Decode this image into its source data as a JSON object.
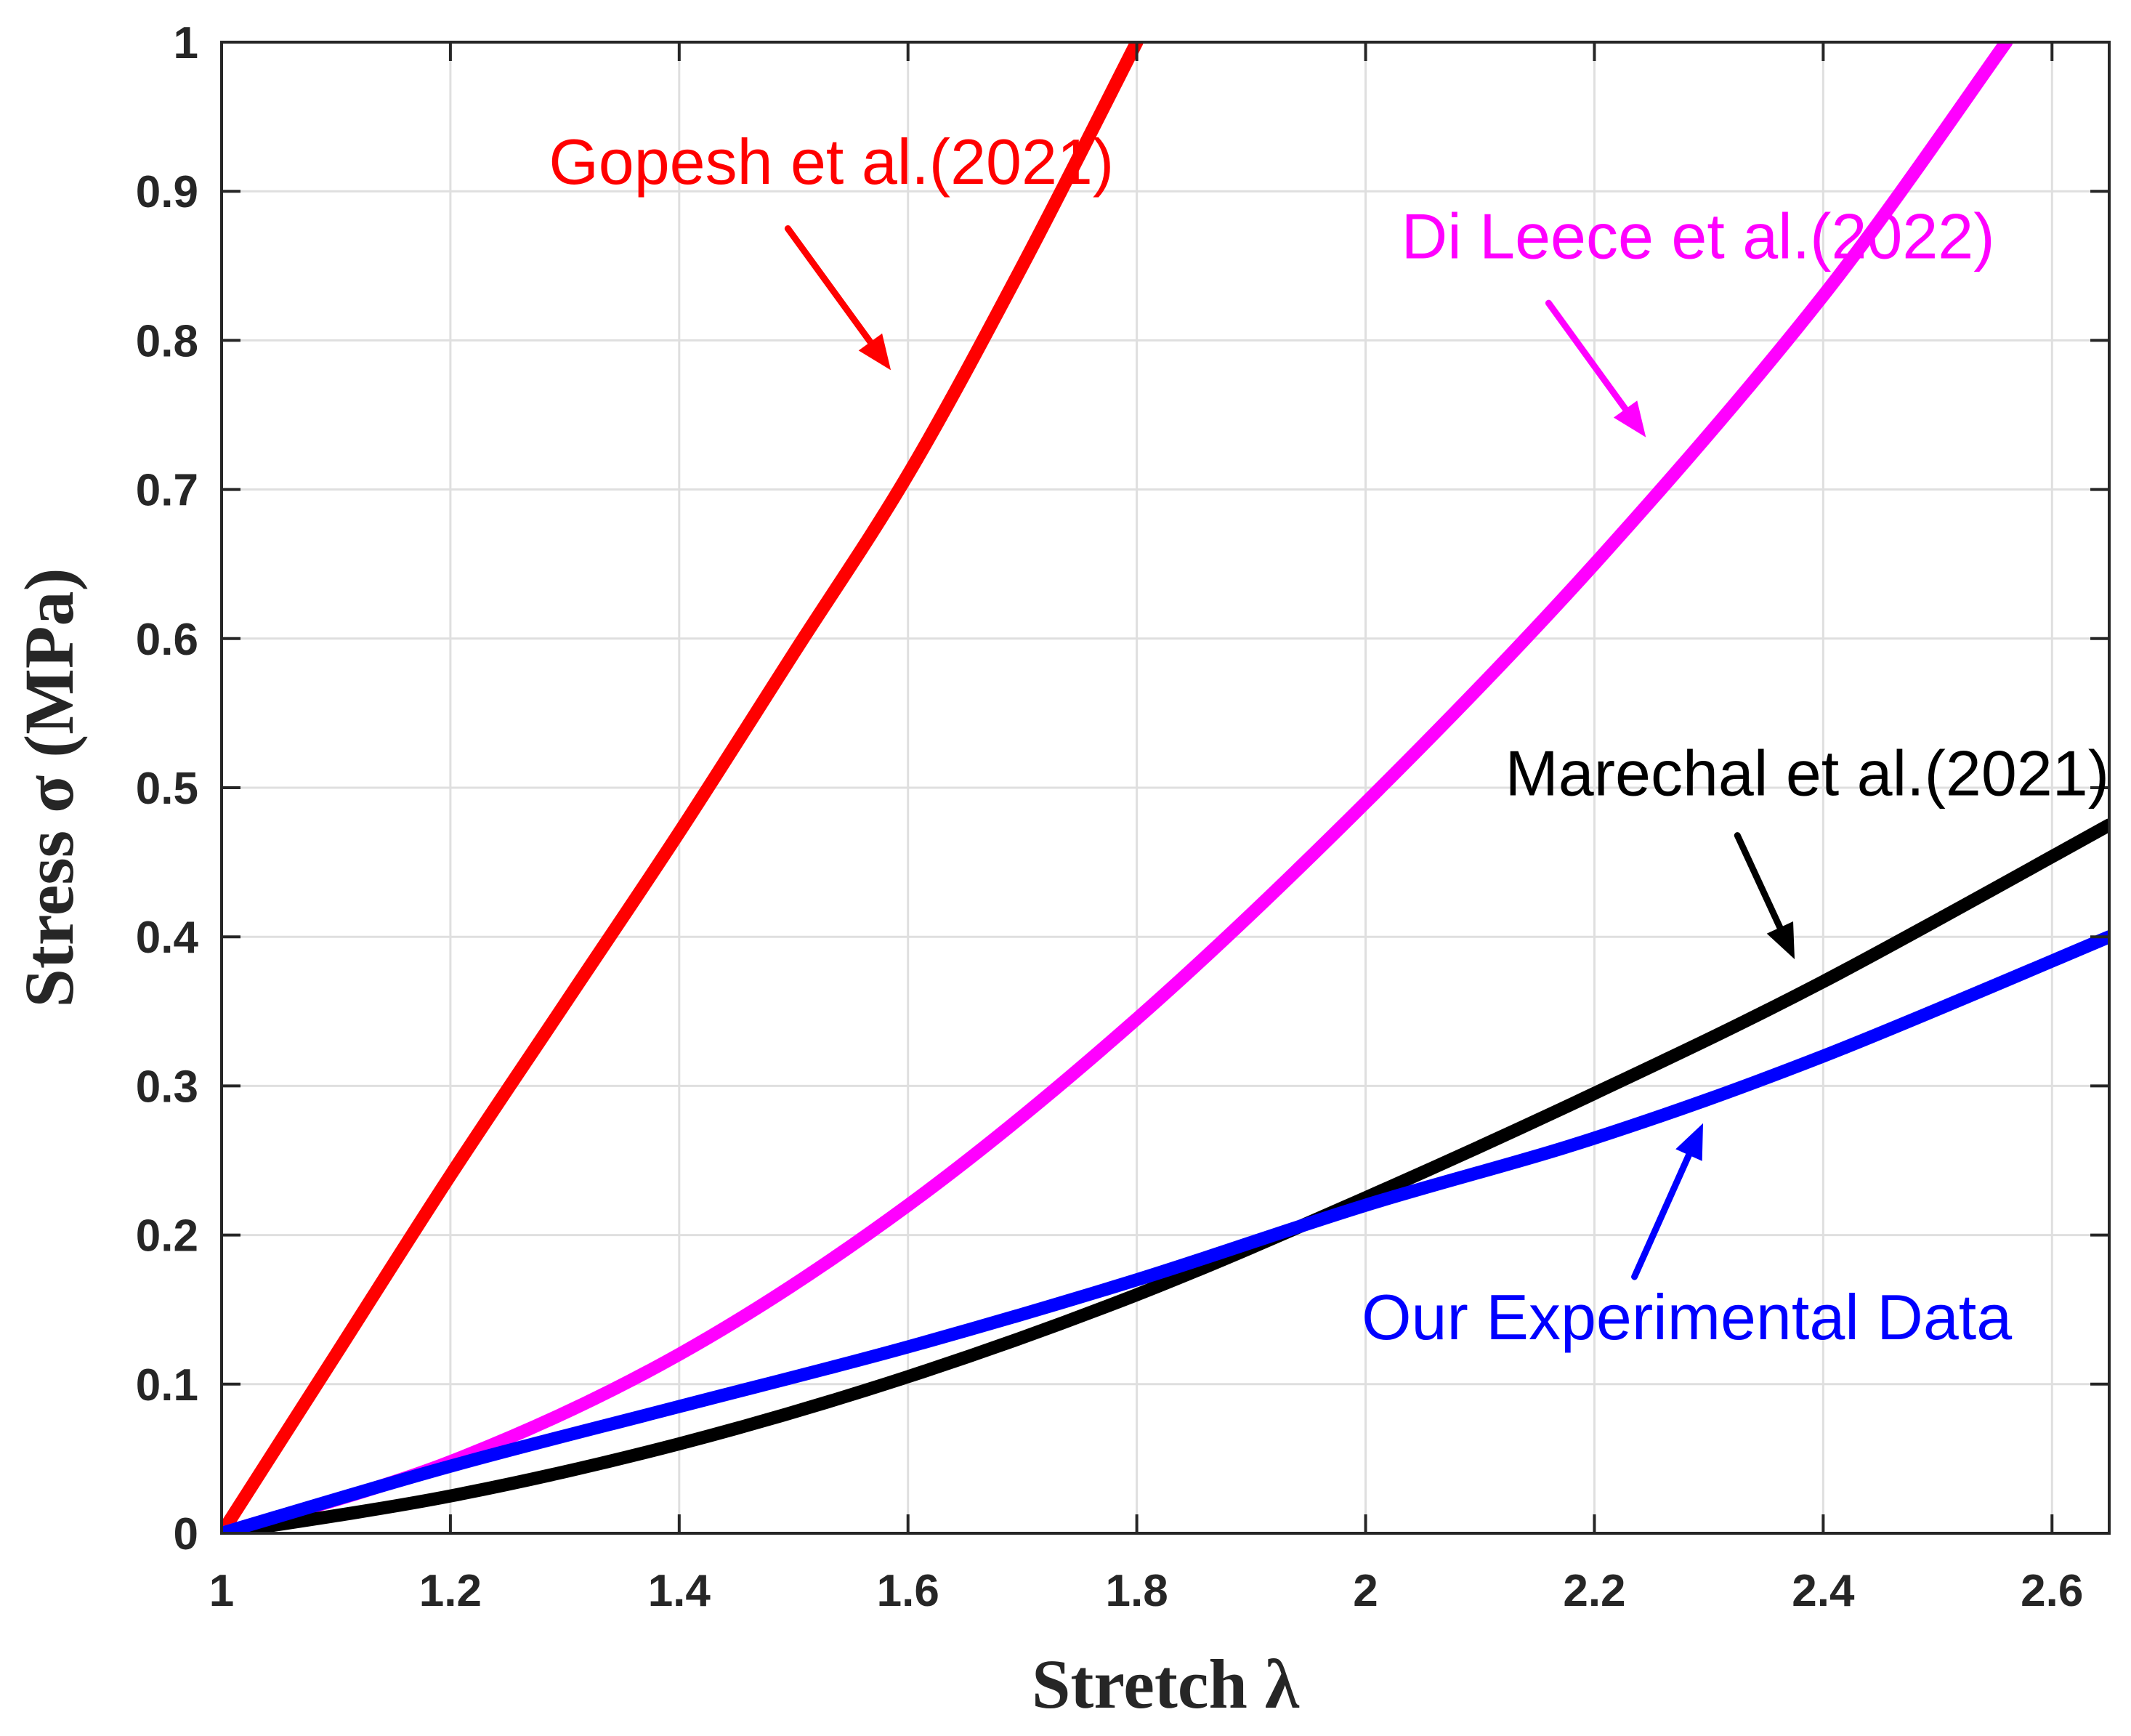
{
  "chart_data": {
    "type": "line",
    "title": "",
    "xlabel": "Stretch λ",
    "ylabel": "Stress σ (MPa)",
    "xlim": [
      1,
      2.65
    ],
    "ylim": [
      0,
      1
    ],
    "grid": true,
    "xticks": [
      1,
      1.2,
      1.4,
      1.6,
      1.8,
      2,
      2.2,
      2.4,
      2.6
    ],
    "xtick_labels": [
      "1",
      "1.2",
      "1.4",
      "1.6",
      "1.8",
      "2",
      "2.2",
      "2.4",
      "2.6"
    ],
    "yticks": [
      0,
      0.1,
      0.2,
      0.3,
      0.4,
      0.5,
      0.6,
      0.7,
      0.8,
      0.9,
      1
    ],
    "ytick_labels": [
      "0",
      "0.1",
      "0.2",
      "0.3",
      "0.4",
      "0.5",
      "0.6",
      "0.7",
      "0.8",
      "0.9",
      "1"
    ],
    "series": [
      {
        "name": "Gopesh et al.(2021)",
        "color": "#ff0000",
        "x": [
          1.0,
          1.1,
          1.2,
          1.3,
          1.4,
          1.5,
          1.6,
          1.7,
          1.8
        ],
        "y": [
          0.0,
          0.12,
          0.24,
          0.355,
          0.47,
          0.59,
          0.71,
          0.85,
          1.0
        ]
      },
      {
        "name": "Di Leece et al.(2022)",
        "color": "#ff00ff",
        "x": [
          1.0,
          1.2,
          1.4,
          1.6,
          1.8,
          2.0,
          2.2,
          2.4,
          2.56
        ],
        "y": [
          0.0,
          0.048,
          0.12,
          0.22,
          0.345,
          0.49,
          0.65,
          0.83,
          1.0
        ]
      },
      {
        "name": "Marechal et al.(2021)",
        "color": "#000000",
        "x": [
          1.0,
          1.2,
          1.4,
          1.6,
          1.8,
          2.0,
          2.2,
          2.4,
          2.65
        ],
        "y": [
          0.0,
          0.025,
          0.06,
          0.105,
          0.16,
          0.225,
          0.295,
          0.37,
          0.475
        ]
      },
      {
        "name": "Our Experimental Data",
        "color": "#0000ff",
        "x": [
          1.0,
          1.2,
          1.4,
          1.6,
          1.8,
          2.0,
          2.2,
          2.4,
          2.65
        ],
        "y": [
          0.0,
          0.045,
          0.085,
          0.125,
          0.17,
          0.22,
          0.265,
          0.32,
          0.4
        ]
      }
    ],
    "annotations": [
      {
        "text": "Gopesh et al.(2021)",
        "color": "#ff0000",
        "x": 1.78,
        "y": 0.905,
        "arrow_from": [
          1.495,
          0.875
        ],
        "arrow_to": [
          1.585,
          0.78
        ]
      },
      {
        "text": "Di Leece et al.(2022)",
        "color": "#ff00ff",
        "x": 2.55,
        "y": 0.855,
        "arrow_from": [
          2.16,
          0.825
        ],
        "arrow_to": [
          2.245,
          0.735
        ]
      },
      {
        "text": "Marechal et al.(2021)",
        "color": "#000000",
        "x": 2.65,
        "y": 0.495,
        "arrow_from": [
          2.325,
          0.468
        ],
        "arrow_to": [
          2.375,
          0.385
        ]
      },
      {
        "text": "Our Experimental Data",
        "color": "#0000ff",
        "x": 2.565,
        "y": 0.13,
        "arrow_from": [
          2.235,
          0.172
        ],
        "arrow_to": [
          2.295,
          0.275
        ]
      }
    ]
  }
}
